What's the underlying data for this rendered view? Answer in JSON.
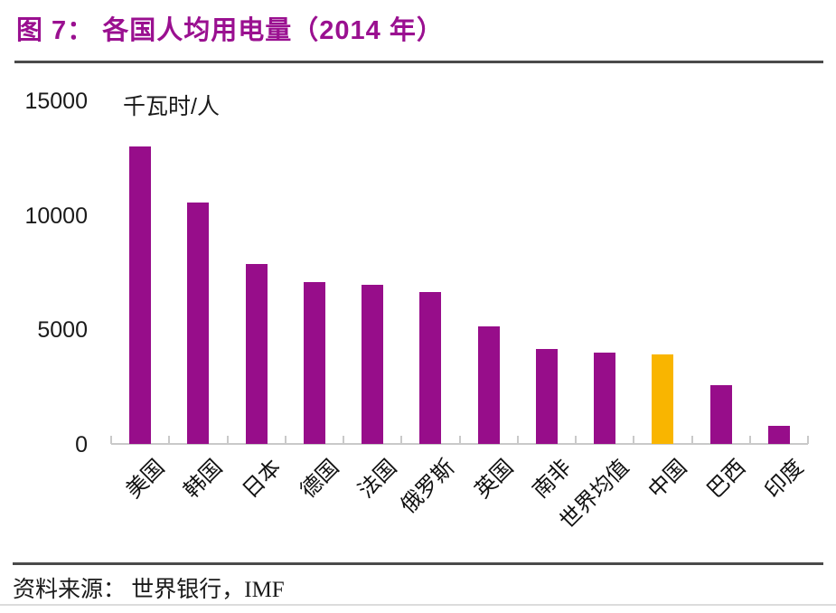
{
  "figure": {
    "title": "图 7：  各国人均用电量（2014 年）",
    "source_label": "资料来源：  世界银行，IMF"
  },
  "chart_data": {
    "type": "bar",
    "title": "各国人均用电量（2014 年）",
    "unit_label": "千瓦时/人",
    "xlabel": "",
    "ylabel": "千瓦时/人",
    "categories": [
      "美国",
      "韩国",
      "日本",
      "德国",
      "法国",
      "俄罗斯",
      "英国",
      "南非",
      "世界均值",
      "中国",
      "巴西",
      "印度"
    ],
    "values": [
      13000,
      10550,
      7850,
      7050,
      6950,
      6650,
      5150,
      4150,
      4000,
      3900,
      2550,
      800
    ],
    "highlight_category": "中国",
    "yticks": [
      0,
      5000,
      10000,
      15000
    ],
    "ylim": [
      0,
      15000
    ],
    "grid": false,
    "legend_position": "none",
    "x_label_rotation_deg": 45
  },
  "colors": {
    "bar": "#970D8A",
    "highlight_bar": "#F9B500",
    "title": "#9A1090",
    "axis": "#C9C9C9",
    "text": "#1a1a1a",
    "rule_dark": "#4a4a4a",
    "rule_light": "#DCDCDC"
  }
}
